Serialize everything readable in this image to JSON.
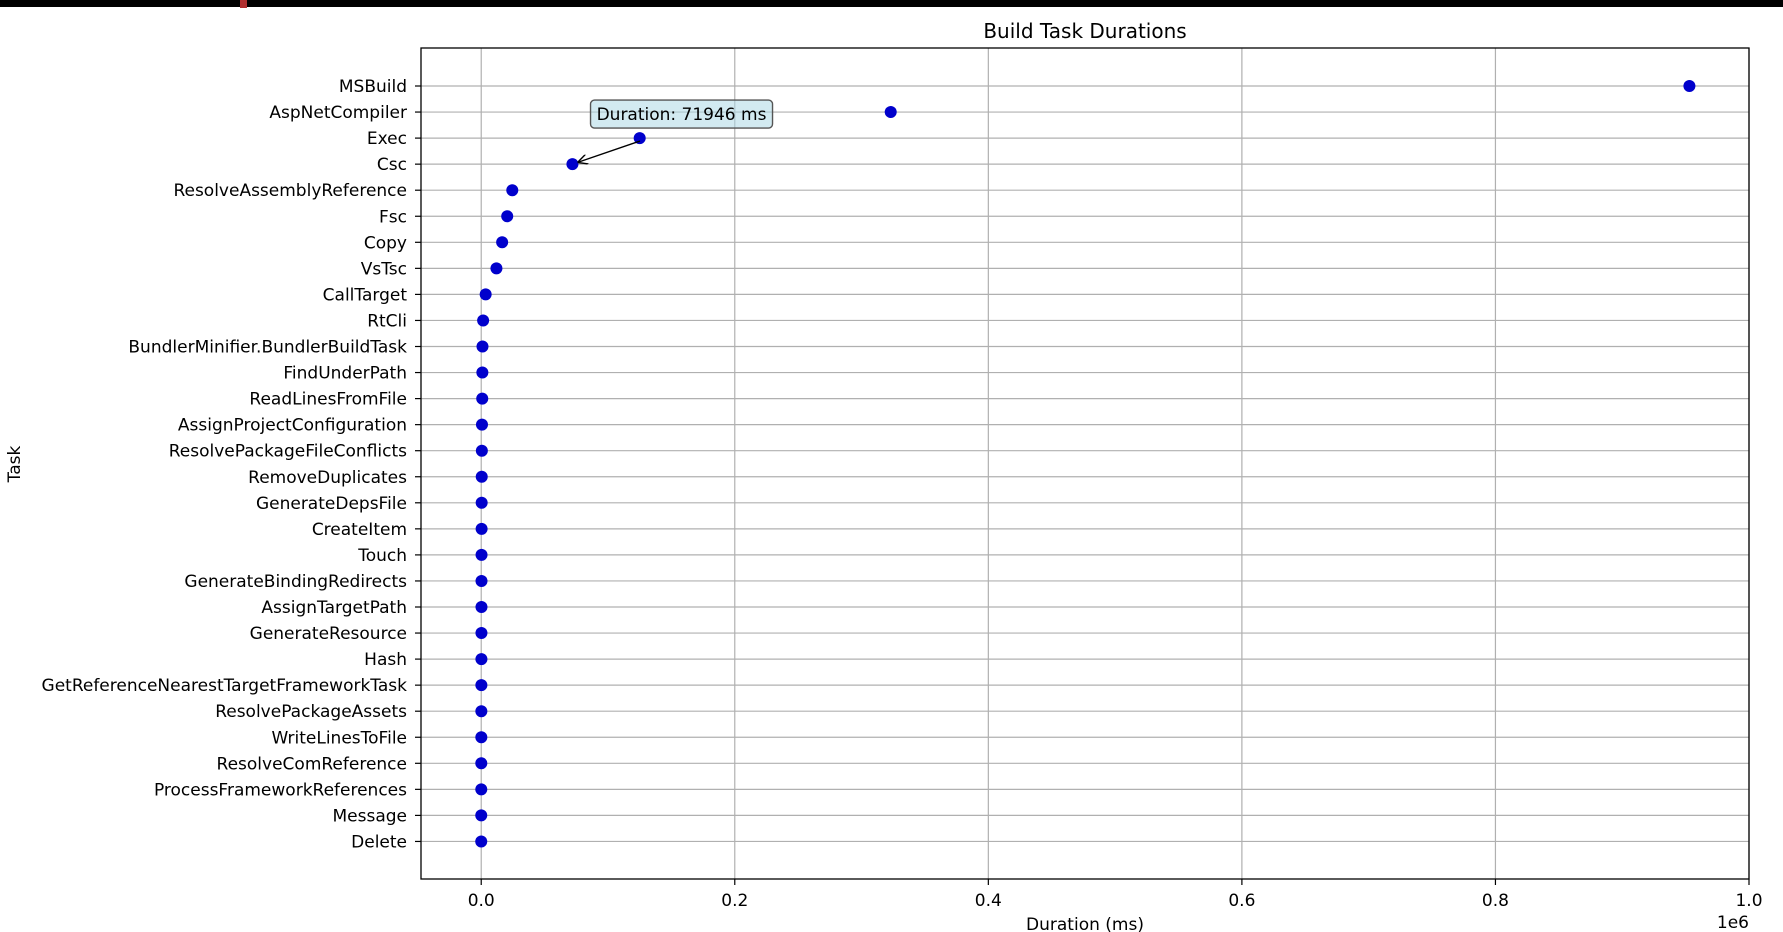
{
  "chart_data": {
    "type": "scatter",
    "title": "Build Task Durations",
    "xlabel": "Duration (ms)",
    "ylabel": "Task",
    "x_offset_label": "1e6",
    "xlim": [
      -47500,
      1000000
    ],
    "xticks": [
      0,
      200000,
      400000,
      600000,
      800000,
      1000000
    ],
    "xtick_labels": [
      "0.0",
      "0.2",
      "0.4",
      "0.6",
      "0.8",
      "1.0"
    ],
    "grid": true,
    "marker_color": "#0000cc",
    "tasks": [
      "MSBuild",
      "AspNetCompiler",
      "Exec",
      "Csc",
      "ResolveAssemblyReference",
      "Fsc",
      "Copy",
      "VsTsc",
      "CallTarget",
      "RtCli",
      "BundlerMinifier.BundlerBuildTask",
      "FindUnderPath",
      "ReadLinesFromFile",
      "AssignProjectConfiguration",
      "ResolvePackageFileConflicts",
      "RemoveDuplicates",
      "GenerateDepsFile",
      "CreateItem",
      "Touch",
      "GenerateBindingRedirects",
      "AssignTargetPath",
      "GenerateResource",
      "Hash",
      "GetReferenceNearestTargetFrameworkTask",
      "ResolvePackageAssets",
      "WriteLinesToFile",
      "ResolveComReference",
      "ProcessFrameworkReferences",
      "Message",
      "Delete"
    ],
    "durations": [
      953000,
      323000,
      125000,
      71946,
      24500,
      20500,
      16500,
      12000,
      3500,
      1500,
      1000,
      900,
      800,
      600,
      500,
      400,
      350,
      300,
      250,
      220,
      200,
      180,
      150,
      120,
      100,
      80,
      60,
      40,
      20,
      10
    ],
    "annotation": {
      "text": "Duration: 71946 ms",
      "target_task": "Csc",
      "target_value": 71946,
      "text_anchor_value": 158000,
      "text_anchor_task": "AspNetCompiler"
    }
  }
}
